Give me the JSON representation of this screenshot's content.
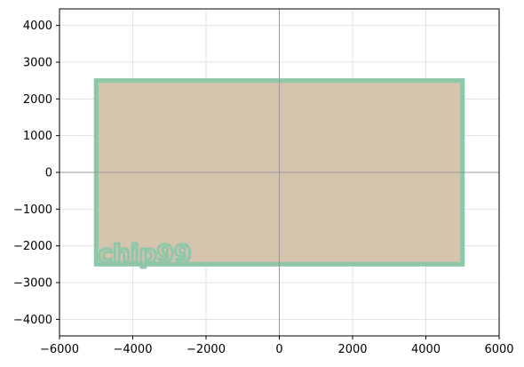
{
  "chart_data": {
    "type": "area",
    "title": "",
    "xlabel": "",
    "ylabel": "",
    "xlim": [
      -6000,
      6000
    ],
    "ylim": [
      -4450,
      4450
    ],
    "grid": true,
    "x_ticks": [
      -6000,
      -4000,
      -2000,
      0,
      2000,
      4000,
      6000
    ],
    "y_ticks": [
      -4000,
      -3000,
      -2000,
      -1000,
      0,
      1000,
      2000,
      3000,
      4000
    ],
    "origin_axes": true,
    "shapes": [
      {
        "kind": "rectangle",
        "x": [
          -5000,
          5000
        ],
        "y": [
          -2500,
          2500
        ],
        "fill_color": "#d4c4ad",
        "edge_color": "#8ec6a8"
      }
    ],
    "annotations": [
      {
        "text": "chip99",
        "x": -4950,
        "y": -2200,
        "color": "#8ec6a8"
      }
    ]
  },
  "colors": {
    "grid": "#dcdcdc",
    "origin_axis": "#999999",
    "frame": "#000000"
  }
}
